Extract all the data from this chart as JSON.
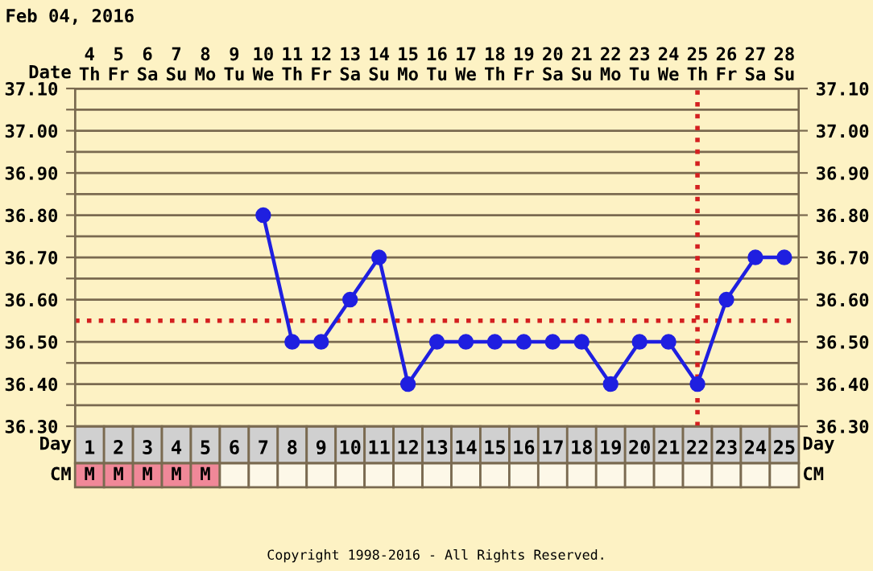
{
  "chart_data": {
    "type": "line",
    "title": "Feb 04, 2016",
    "xlabel": "Date",
    "categories": [
      "4\nTh",
      "5\nFr",
      "6\nSa",
      "7\nSu",
      "8\nMo",
      "9\nTu",
      "10\nWe",
      "11\nTh",
      "12\nFr",
      "13\nSa",
      "14\nSu",
      "15\nMo",
      "16\nTu",
      "17\nWe",
      "18\nTh",
      "19\nFr",
      "20\nSa",
      "21\nSu",
      "22\nMo",
      "23\nTu",
      "24\nWe",
      "25\nTh",
      "26\nFr",
      "27\nSa",
      "28\nSu"
    ],
    "series": [
      {
        "color": "#1f1fe0",
        "values": [
          null,
          null,
          null,
          null,
          null,
          null,
          36.8,
          36.5,
          36.5,
          36.6,
          36.7,
          36.4,
          36.5,
          36.5,
          36.5,
          36.5,
          36.5,
          36.5,
          36.4,
          36.5,
          36.5,
          36.4,
          36.6,
          36.7,
          36.7
        ]
      }
    ],
    "marker": "circle",
    "line_style": "solid",
    "grid": true,
    "legend": false,
    "ylim": [
      36.3,
      37.1
    ],
    "yticks": [
      {
        "value": 36.3,
        "label": "36.30"
      },
      {
        "value": 36.35,
        "label": null
      },
      {
        "value": 36.4,
        "label": "36.40"
      },
      {
        "value": 36.45,
        "label": null
      },
      {
        "value": 36.5,
        "label": "36.50"
      },
      {
        "value": 36.6,
        "label": "36.60"
      },
      {
        "value": 36.65,
        "label": null
      },
      {
        "value": 36.7,
        "label": "36.70"
      },
      {
        "value": 36.75,
        "label": null
      },
      {
        "value": 36.8,
        "label": "36.80"
      },
      {
        "value": 36.85,
        "label": null
      },
      {
        "value": 36.9,
        "label": "36.90"
      },
      {
        "value": 36.95,
        "label": null
      },
      {
        "value": 37.0,
        "label": "37.00"
      },
      {
        "value": 37.05,
        "label": null
      },
      {
        "value": 37.1,
        "label": "37.10"
      }
    ],
    "y2lim": [
      36.3,
      37.1
    ],
    "y2ticks": [
      {
        "value": 36.3,
        "label": "36.30"
      },
      {
        "value": 36.4,
        "label": "36.40"
      },
      {
        "value": 36.5,
        "label": "36.50"
      },
      {
        "value": 36.6,
        "label": "36.60"
      },
      {
        "value": 36.7,
        "label": "36.70"
      },
      {
        "value": 36.8,
        "label": "36.80"
      },
      {
        "value": 36.9,
        "label": "36.90"
      },
      {
        "value": 37.0,
        "label": "37.00"
      },
      {
        "value": 37.1,
        "label": "37.10"
      }
    ],
    "ref_lines": [
      {
        "axis": "y",
        "value": 36.55,
        "color": "#d42020",
        "line_style": "dotted"
      },
      {
        "axis": "x",
        "value": "25\nTh",
        "color": "#d42020",
        "line_style": "dotted"
      }
    ],
    "x2label": "Day",
    "x2lim": [
      0.5,
      25.5
    ],
    "x2ticks": [
      1,
      2,
      3,
      4,
      5,
      6,
      7,
      8,
      9,
      10,
      11,
      12,
      13,
      14,
      15,
      16,
      17,
      18,
      19,
      20,
      21,
      22,
      23,
      24,
      25
    ],
    "annotations": [
      "CM",
      "M",
      "M",
      "M",
      "M",
      "M",
      "Copyright 1998-2016 - All Rights Reserved."
    ]
  }
}
